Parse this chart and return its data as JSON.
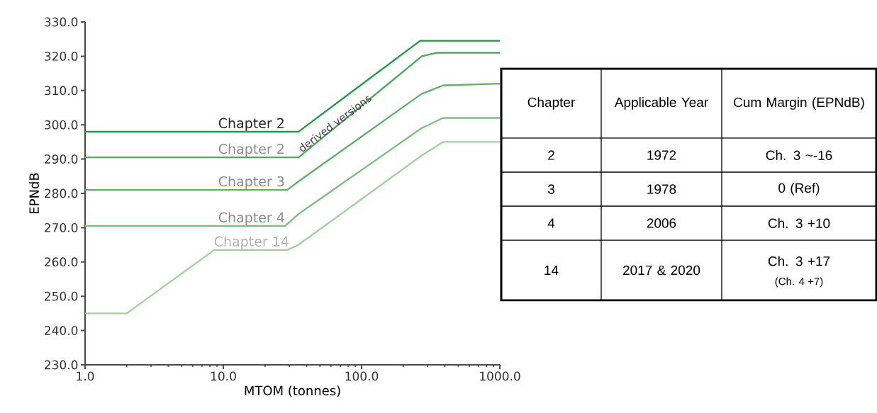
{
  "chart_data": [
    {
      "type": "line",
      "xlabel": "MTOM (tonnes)",
      "ylabel": "EPNdB",
      "log": "x",
      "xlim": [
        1,
        1000
      ],
      "ylim": [
        230,
        330
      ],
      "xticks": [
        {
          "value": 1,
          "label": "1.0"
        },
        {
          "value": 10,
          "label": "10.0"
        },
        {
          "value": 100,
          "label": "100.0"
        },
        {
          "value": 1000,
          "label": "1000.0"
        }
      ],
      "yticks": [
        {
          "value": 230,
          "label": "230.0"
        },
        {
          "value": 240,
          "label": "240.0"
        },
        {
          "value": 250,
          "label": "250.0"
        },
        {
          "value": 260,
          "label": "260.0"
        },
        {
          "value": 270,
          "label": "270.0"
        },
        {
          "value": 280,
          "label": "280.0"
        },
        {
          "value": 290,
          "label": "290.0"
        },
        {
          "value": 300,
          "label": "300.0"
        },
        {
          "value": 310,
          "label": "310.0"
        },
        {
          "value": 320,
          "label": "320.0"
        },
        {
          "value": 330,
          "label": "330.0"
        }
      ],
      "grid": false,
      "legend": false,
      "marker": "none",
      "line_style": "solid",
      "series": [
        {
          "name": "Chapter 2",
          "color": "#1f9a3e",
          "x": [
            1,
            35,
            265,
            1000
          ],
          "values": [
            298,
            298,
            324.5,
            324.5
          ]
        },
        {
          "name": "Chapter 2",
          "color": "#4ea85c",
          "x": [
            1,
            35,
            273,
            347,
            1000
          ],
          "values": [
            290.5,
            290.5,
            320,
            321,
            321
          ]
        },
        {
          "name": "Chapter 3",
          "color": "#62b06a",
          "x": [
            1,
            29,
            35,
            271,
            388,
            1000
          ],
          "values": [
            281,
            281,
            283.5,
            309,
            311.5,
            312
          ]
        },
        {
          "name": "Chapter 4",
          "color": "#7dbe82",
          "x": [
            1,
            28,
            35,
            271,
            388,
            1000
          ],
          "values": [
            270.5,
            270.5,
            274,
            299,
            302,
            302
          ]
        },
        {
          "name": "Chapter 14",
          "color": "#a2d0a2",
          "x": [
            1,
            2,
            8.6,
            29,
            35,
            271,
            388,
            1000
          ],
          "values": [
            245,
            245,
            263.5,
            263.5,
            265,
            291,
            295,
            295
          ]
        }
      ],
      "annotations": [
        "derived versions"
      ]
    },
    {
      "type": "other",
      "annotations": [
        "Chapter",
        "Applicable Year",
        "Cum Margin (EPNdB)",
        "2",
        "1972",
        "Ch. 3 ~-16",
        "3",
        "1978",
        "0 (Ref)",
        "4",
        "2006",
        "Ch. 3 +10",
        "14",
        "2017 & 2020",
        "Ch. 3 +17",
        "(Ch. 4 +7)"
      ]
    }
  ]
}
